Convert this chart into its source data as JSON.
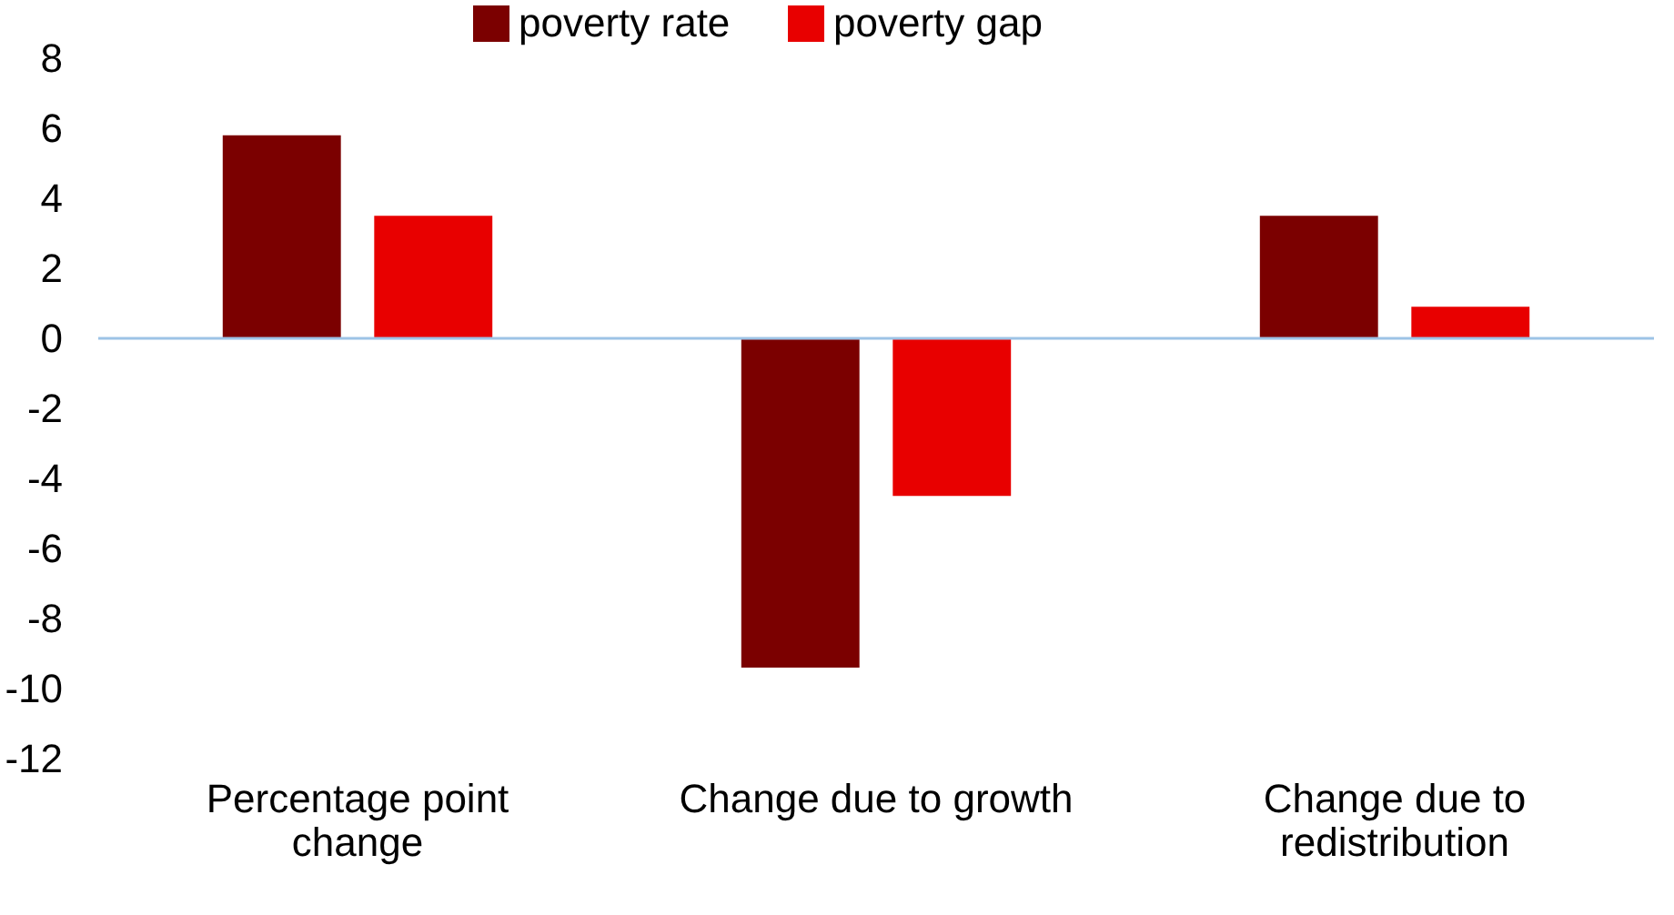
{
  "chart_data": {
    "type": "bar",
    "categories": [
      "Percentage point change",
      "Change due to growth",
      "Change due to redistribution"
    ],
    "series": [
      {
        "name": "poverty rate",
        "color": "#7b0000",
        "values": [
          5.8,
          -9.4,
          3.5
        ]
      },
      {
        "name": "poverty gap",
        "color": "#e80000",
        "values": [
          3.5,
          -4.5,
          0.9
        ]
      }
    ],
    "ylim": [
      -12,
      8
    ],
    "yticks": [
      -12,
      -10,
      -8,
      -6,
      -4,
      -2,
      0,
      2,
      4,
      6,
      8
    ],
    "grid": false,
    "legend": "top",
    "ref_lines": [
      {
        "axis": "y",
        "value": 0,
        "color": "#9dc3e6"
      }
    ]
  }
}
